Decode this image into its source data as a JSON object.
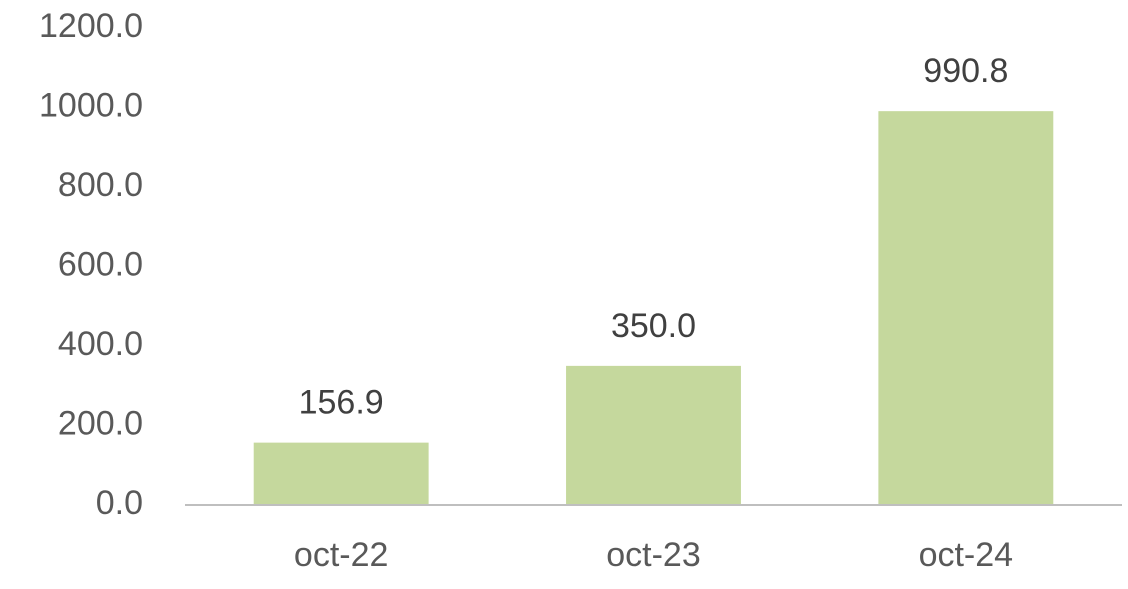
{
  "chart_data": {
    "type": "bar",
    "categories": [
      "oct-22",
      "oct-23",
      "oct-24"
    ],
    "values": [
      156.9,
      350.0,
      990.8
    ],
    "value_labels": [
      "156.9",
      "350.0",
      "990.8"
    ],
    "color": "#c5d89d",
    "ylim": [
      0,
      1200
    ],
    "yticks": [
      {
        "value": 0,
        "label": "0.0"
      },
      {
        "value": 200,
        "label": "200.0"
      },
      {
        "value": 400,
        "label": "400.0"
      },
      {
        "value": 600,
        "label": "600.0"
      },
      {
        "value": 800,
        "label": "800.0"
      },
      {
        "value": 1000,
        "label": "1000.0"
      },
      {
        "value": 1200,
        "label": "1200.0"
      }
    ],
    "grid": false
  }
}
